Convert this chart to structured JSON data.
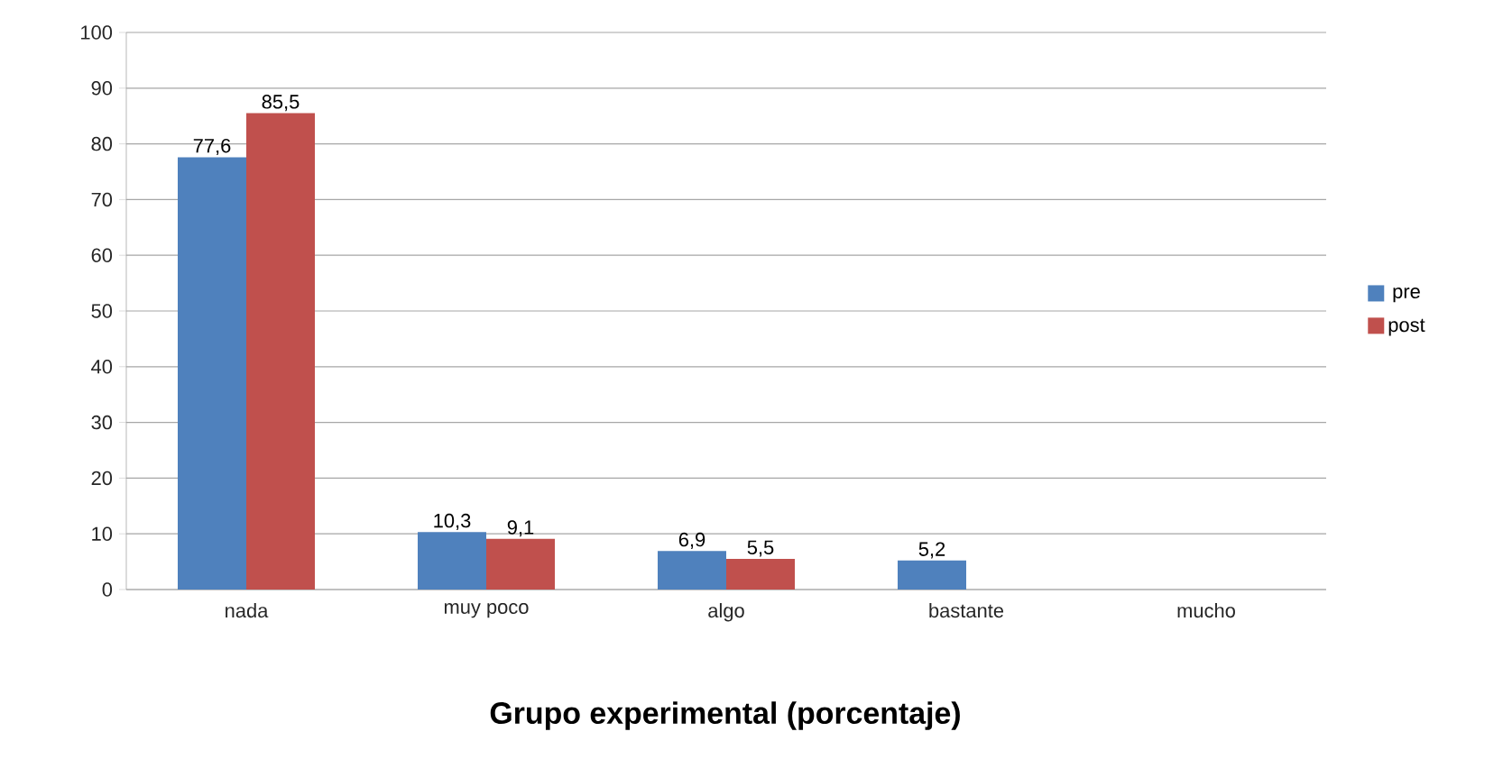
{
  "chart_data": {
    "type": "bar",
    "title": "Grupo experimental (porcentaje)",
    "categories": [
      "nada",
      "muy poco",
      "algo",
      "bastante",
      "mucho"
    ],
    "series": [
      {
        "name": "pre",
        "color": "#4f81bd",
        "values": [
          77.6,
          10.3,
          6.9,
          5.2,
          null
        ],
        "value_labels": [
          "77,6",
          "10,3",
          "6,9",
          "5,2",
          null
        ]
      },
      {
        "name": "post",
        "color": "#c0504d",
        "values": [
          85.5,
          9.1,
          5.5,
          null,
          null
        ],
        "value_labels": [
          "85,5",
          "9,1",
          "5,5",
          null,
          null
        ]
      }
    ],
    "ylim": [
      0,
      100
    ],
    "yticks": [
      0,
      10,
      20,
      30,
      40,
      50,
      60,
      70,
      80,
      90,
      100
    ],
    "grid": "y",
    "legend": "right"
  }
}
